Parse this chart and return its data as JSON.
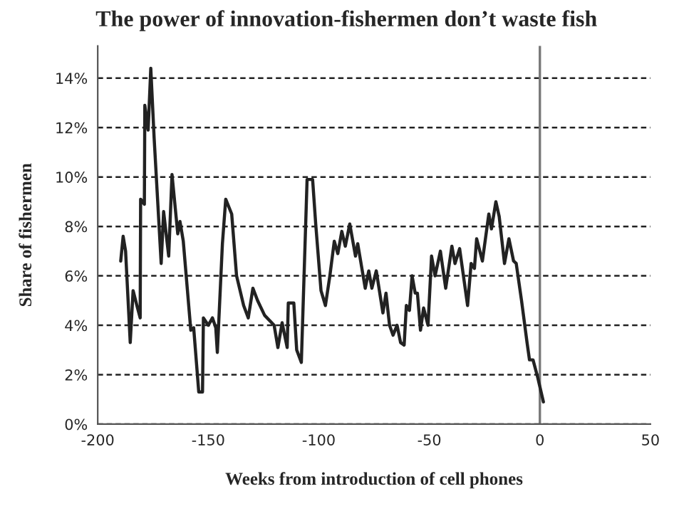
{
  "chart_data": {
    "type": "line",
    "title": "The power of innovation-fishermen don’t waste fish",
    "xlabel": "Weeks from introduction of cell phones",
    "ylabel": "Share of fishermen",
    "x": [
      -189.6,
      -188.5,
      -187.4,
      -185.3,
      -184,
      -182,
      -180.8,
      -180.6,
      -178.9,
      -178.7,
      -177.2,
      -176.0,
      -174.5,
      -171.3,
      -170.2,
      -167.9,
      -166.4,
      -163.8,
      -162.8,
      -161.3,
      -157.9,
      -156.6,
      -154.3,
      -152.6,
      -152.2,
      -150.0,
      -148.1,
      -146.6,
      -145.9,
      -143.6,
      -142.1,
      -139.4,
      -137.2,
      -134.0,
      -131.9,
      -129.8,
      -127.7,
      -124.5,
      -120.2,
      -118.5,
      -116.6,
      -114.3,
      -113.8,
      -111.3,
      -110.0,
      -107.9,
      -105.3,
      -102.8,
      -101.4,
      -99,
      -97,
      -95,
      -93,
      -91.4,
      -89.6,
      -88,
      -86,
      -83.4,
      -82.4,
      -79,
      -77.4,
      -76,
      -74,
      -71,
      -69.6,
      -68,
      -66.4,
      -64.6,
      -63,
      -61.4,
      -60.4,
      -59,
      -57.8,
      -56.4,
      -55.4,
      -54,
      -52.6,
      -50.6,
      -49.0,
      -47.4,
      -45,
      -42.6,
      -39.8,
      -38.4,
      -36.3,
      -32.7,
      -31.1,
      -29.6,
      -28.6,
      -26.0,
      -23.1,
      -21.9,
      -19.9,
      -18.4,
      -16.0,
      -14.0,
      -11.9,
      -10.7,
      -8.3,
      -5.8,
      -4.7,
      -3.1,
      -1.0,
      1.6
    ],
    "series": [
      {
        "color": "#222222",
        "values": [
          6.6,
          7.6,
          7.0,
          3.3,
          5.4,
          4.7,
          4.3,
          9.1,
          8.9,
          12.9,
          11.9,
          14.4,
          11.6,
          6.5,
          8.6,
          6.8,
          10.1,
          7.7,
          8.2,
          7.4,
          3.8,
          3.9,
          1.3,
          1.3,
          4.3,
          4.0,
          4.3,
          3.9,
          2.9,
          7.3,
          9.1,
          8.5,
          6.0,
          4.8,
          4.3,
          5.5,
          5.0,
          4.4,
          4.0,
          3.1,
          4.1,
          3.1,
          4.9,
          4.9,
          3.0,
          2.5,
          9.9,
          9.9,
          8.1,
          5.4,
          4.8,
          6.0,
          7.4,
          6.9,
          7.8,
          7.2,
          8.1,
          6.8,
          7.3,
          5.5,
          6.2,
          5.5,
          6.2,
          4.5,
          5.3,
          4.0,
          3.6,
          4.0,
          3.3,
          3.2,
          4.8,
          4.6,
          6.0,
          5.3,
          5.3,
          3.8,
          4.7,
          4.0,
          6.8,
          6.0,
          7.0,
          5.5,
          7.2,
          6.5,
          7.1,
          4.8,
          6.5,
          6.3,
          7.5,
          6.6,
          8.5,
          7.9,
          9.0,
          8.4,
          6.5,
          7.5,
          6.6,
          6.5,
          5.0,
          3.3,
          2.6,
          2.6,
          1.9,
          0.9
        ]
      }
    ],
    "xlim": [
      -200,
      50
    ],
    "xticks": [
      -200,
      -150,
      -100,
      -50,
      0,
      50
    ],
    "ylim": [
      0,
      15.3
    ],
    "yticks": [
      {
        "value": 0,
        "label": "0%"
      },
      {
        "value": 2,
        "label": "2%"
      },
      {
        "value": 4,
        "label": "4%"
      },
      {
        "value": 6,
        "label": "6%"
      },
      {
        "value": 8,
        "label": "8%"
      },
      {
        "value": 10,
        "label": "10%"
      },
      {
        "value": 12,
        "label": "12%"
      },
      {
        "value": 14,
        "label": "14%"
      }
    ],
    "grid": "y",
    "marker": "none",
    "line_style": "solid",
    "ref_lines": [
      {
        "axis": "x",
        "value": 0,
        "color": "#777777",
        "line_style": "solid"
      }
    ]
  }
}
